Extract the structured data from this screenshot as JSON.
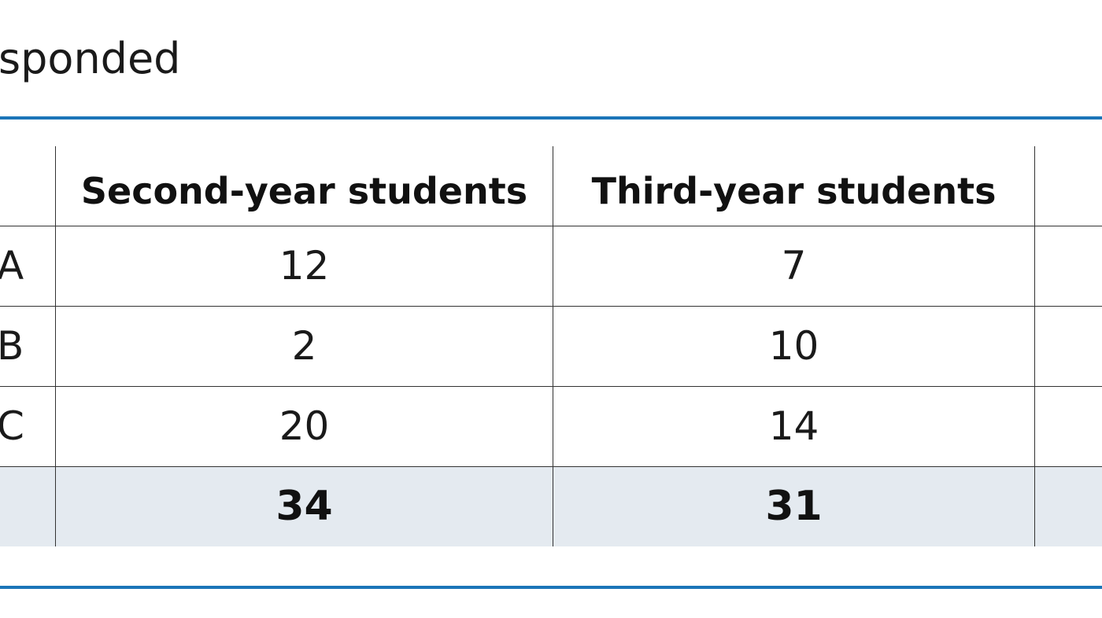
{
  "caption": "sponded",
  "table": {
    "headers": [
      "",
      "Second-year students",
      "Third-year students",
      ""
    ],
    "rows": [
      {
        "label": "A",
        "values": [
          "12",
          "7",
          ""
        ]
      },
      {
        "label": "B",
        "values": [
          "2",
          "10",
          ""
        ]
      },
      {
        "label": "C",
        "values": [
          "20",
          "14",
          ""
        ]
      }
    ],
    "total": {
      "label": "",
      "values": [
        "34",
        "31",
        ""
      ]
    }
  },
  "colors": {
    "rule": "#1b75b8",
    "total_row_bg": "#e4eaf0",
    "grid": "#333333"
  }
}
